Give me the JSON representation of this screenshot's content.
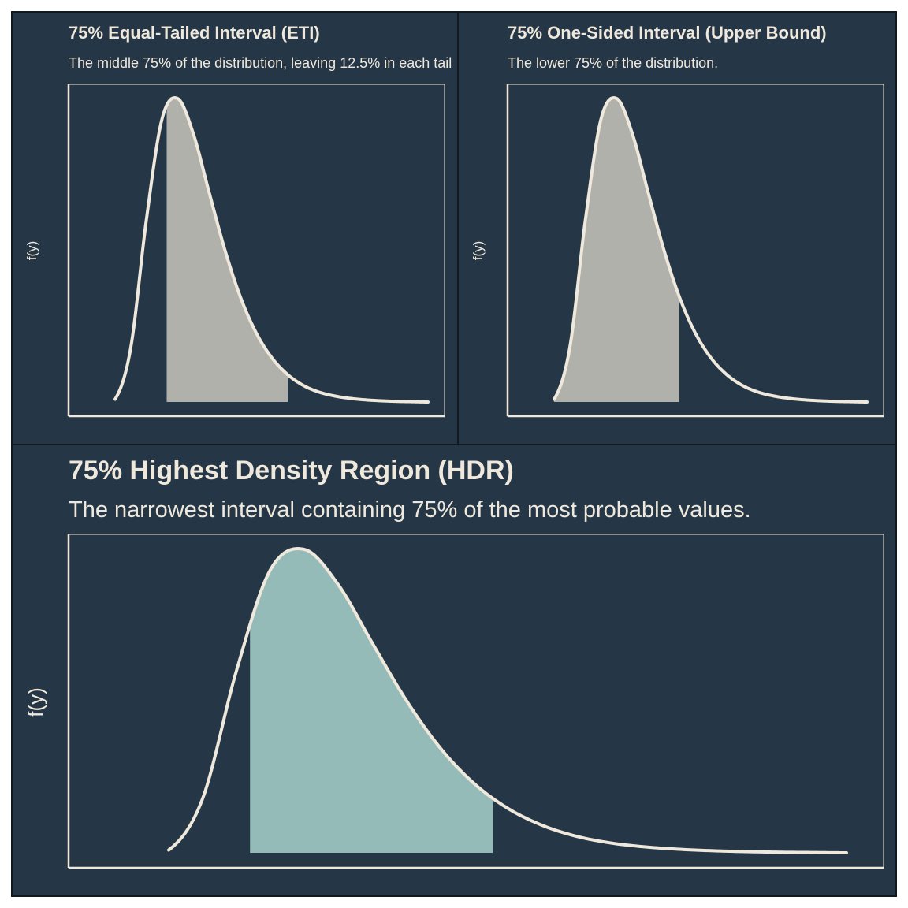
{
  "colors": {
    "background": "#253746",
    "panel_border": "#111820",
    "text": "#efe8dc",
    "curve": "#efe8dc",
    "axis": "#efe8dc",
    "eti_fill": "#b1b1ab",
    "upper_fill": "#b1b1ab",
    "hdr_fill": "#95bbb8"
  },
  "panels": [
    {
      "title": "75% Equal-Tailed Interval (ETI)",
      "subtitle": "The middle 75% of the distribution, leaving 12.5% in each tail",
      "ylabel": "f(y)"
    },
    {
      "title": "75% One-Sided Interval (Upper Bound)",
      "subtitle": "The lower 75% of the distribution.",
      "ylabel": "f(y)"
    },
    {
      "title": "75% Highest Density Region (HDR)",
      "subtitle": "The narrowest interval containing 75% of the most probable values.",
      "ylabel": "f(y)"
    }
  ],
  "chart_data": [
    {
      "type": "area",
      "distribution": "right-skewed density curve",
      "title": "75% Equal-Tailed Interval (ETI)",
      "subtitle": "The middle 75% of the distribution, leaving 12.5% in each tail",
      "ylabel": "f(y)",
      "x": [
        0,
        0.05,
        0.1,
        0.15,
        0.2,
        0.25,
        0.3,
        0.35,
        0.4,
        0.45,
        0.5,
        0.55,
        0.6,
        0.65,
        0.7,
        0.75,
        0.8,
        0.85,
        0.9,
        0.95,
        1.0
      ],
      "y": [
        0.009,
        0.177,
        0.596,
        0.926,
        0.993,
        0.878,
        0.688,
        0.501,
        0.345,
        0.228,
        0.146,
        0.091,
        0.055,
        0.033,
        0.02,
        0.012,
        0.007,
        0.004,
        0.002,
        0.001,
        0.0
      ],
      "shaded_interval": [
        0.165,
        0.552
      ],
      "interval_mass": 0.75,
      "grid": false,
      "ticks": false
    },
    {
      "type": "area",
      "distribution": "right-skewed density curve",
      "title": "75% One-Sided Interval (Upper Bound)",
      "subtitle": "The lower 75% of the distribution.",
      "ylabel": "f(y)",
      "x": [
        0,
        0.05,
        0.1,
        0.15,
        0.2,
        0.25,
        0.3,
        0.35,
        0.4,
        0.45,
        0.5,
        0.55,
        0.6,
        0.65,
        0.7,
        0.75,
        0.8,
        0.85,
        0.9,
        0.95,
        1.0
      ],
      "y": [
        0.009,
        0.177,
        0.596,
        0.926,
        0.993,
        0.878,
        0.688,
        0.501,
        0.345,
        0.228,
        0.146,
        0.091,
        0.055,
        0.033,
        0.02,
        0.012,
        0.007,
        0.004,
        0.002,
        0.001,
        0.0
      ],
      "shaded_interval": [
        0.0,
        0.4
      ],
      "interval_mass": 0.75,
      "grid": false,
      "ticks": false
    },
    {
      "type": "area",
      "distribution": "right-skewed density curve",
      "title": "75% Highest Density Region (HDR)",
      "subtitle": "The narrowest interval containing 75% of the most probable values.",
      "ylabel": "f(y)",
      "x": [
        0,
        0.05,
        0.1,
        0.15,
        0.2,
        0.25,
        0.3,
        0.35,
        0.4,
        0.45,
        0.5,
        0.55,
        0.6,
        0.65,
        0.7,
        0.75,
        0.8,
        0.85,
        0.9,
        0.95,
        1.0
      ],
      "y": [
        0.009,
        0.177,
        0.596,
        0.926,
        0.993,
        0.878,
        0.688,
        0.501,
        0.345,
        0.228,
        0.146,
        0.091,
        0.055,
        0.033,
        0.02,
        0.012,
        0.007,
        0.004,
        0.002,
        0.001,
        0.0
      ],
      "shaded_interval": [
        0.12,
        0.478
      ],
      "interval_mass": 0.75,
      "grid": false,
      "ticks": false
    }
  ]
}
